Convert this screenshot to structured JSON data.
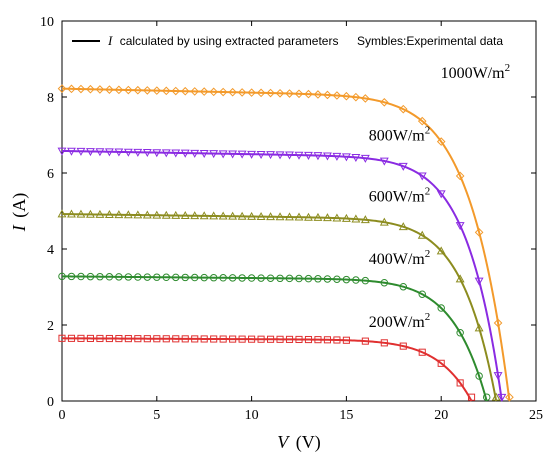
{
  "chart_data": {
    "type": "line",
    "xlabel": {
      "symbol": "V",
      "unit": "(V)"
    },
    "ylabel": {
      "symbol": "I",
      "unit": "(A)"
    },
    "xlim": [
      0,
      25
    ],
    "ylim": [
      0,
      10
    ],
    "xticks": [
      "0",
      "5",
      "10",
      "15",
      "20",
      "25"
    ],
    "yticks": [
      "0",
      "2",
      "4",
      "6",
      "8",
      "10"
    ],
    "legend": {
      "placement": "top",
      "line_entry": {
        "symbol": "I",
        "text": "calculated by using extracted parameters"
      },
      "marker_entry": "Symbles:Experimental data"
    },
    "series": [
      {
        "name": "1000W/m2",
        "label_base": "1000W/m",
        "label_sup": "2",
        "color": "#F39A2B",
        "marker": "diamond",
        "isc": 8.22,
        "voc": 23.6,
        "knee": 0.72,
        "label_x": 21.8,
        "label_y": 8.5
      },
      {
        "name": "800W/m2",
        "label_base": "800W/m",
        "label_sup": "2",
        "color": "#8A2BE2",
        "marker": "triangle-down",
        "isc": 6.58,
        "voc": 23.2,
        "knee": 0.8,
        "label_x": 17.8,
        "label_y": 6.85
      },
      {
        "name": "600W/m2",
        "label_base": "600W/m",
        "label_sup": "2",
        "color": "#8C8C1F",
        "marker": "triangle-up",
        "isc": 4.92,
        "voc": 22.9,
        "knee": 0.8,
        "label_x": 17.8,
        "label_y": 5.25
      },
      {
        "name": "400W/m2",
        "label_base": "400W/m",
        "label_sup": "2",
        "color": "#2E8B2E",
        "marker": "circle",
        "isc": 3.28,
        "voc": 22.4,
        "knee": 0.8,
        "label_x": 17.8,
        "label_y": 3.6
      },
      {
        "name": "200W/m2",
        "label_base": "200W/m",
        "label_sup": "2",
        "color": "#E03030",
        "marker": "square",
        "isc": 1.65,
        "voc": 21.6,
        "knee": 0.78,
        "label_x": 17.8,
        "label_y": 1.95
      }
    ]
  }
}
